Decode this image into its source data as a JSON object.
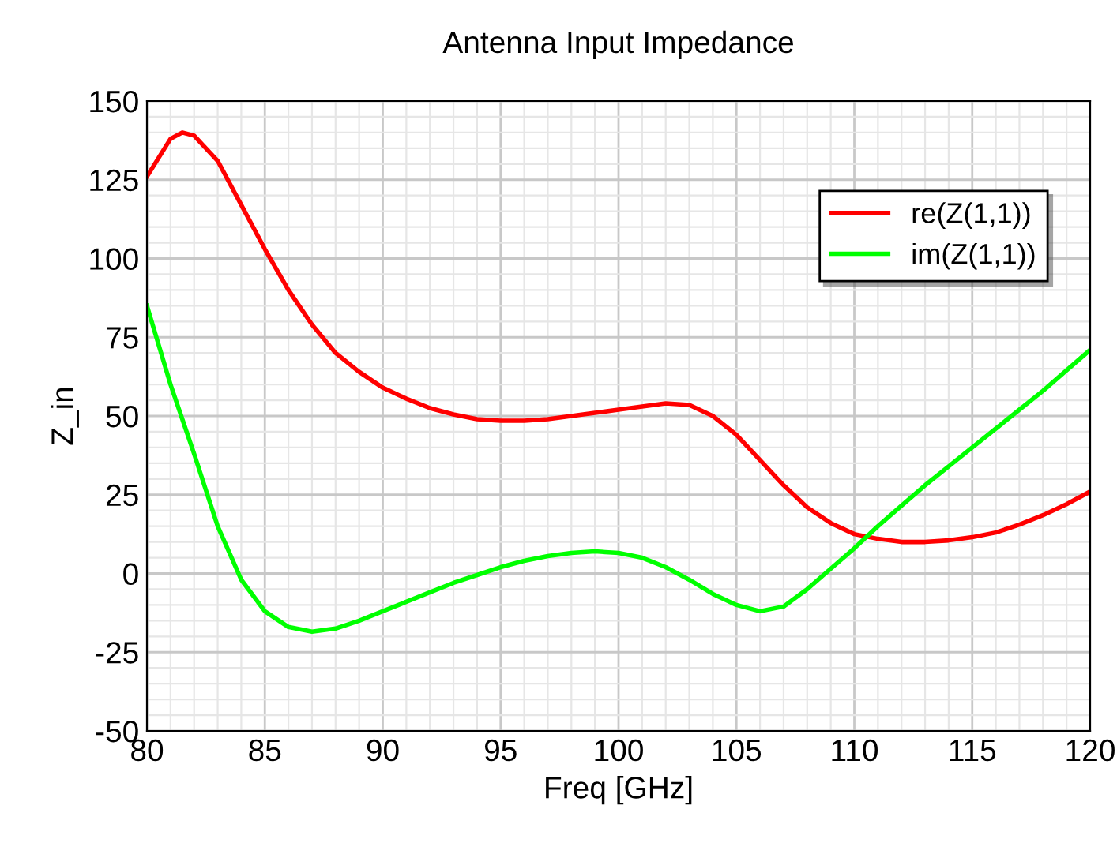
{
  "chart_data": {
    "type": "line",
    "title": "Antenna Input Impedance",
    "xlabel": "Freq [GHz]",
    "ylabel": "Z_in",
    "x": [
      80,
      81,
      81.5,
      82,
      83,
      84,
      85,
      86,
      87,
      88,
      89,
      90,
      91,
      92,
      93,
      94,
      95,
      96,
      97,
      98,
      99,
      100,
      101,
      102,
      103,
      104,
      105,
      106,
      107,
      108,
      109,
      110,
      111,
      112,
      113,
      114,
      115,
      116,
      117,
      118,
      119,
      120
    ],
    "series": [
      {
        "name": "re(Z(1,1))",
        "color": "#ff0000",
        "values": [
          126,
          138,
          140,
          139,
          131,
          117,
          103,
          90,
          79,
          70,
          64,
          59,
          55.5,
          52.5,
          50.5,
          49,
          48.5,
          48.5,
          49,
          50,
          51,
          52,
          53,
          54,
          53.5,
          50,
          44,
          36,
          28,
          21,
          16,
          12.5,
          11,
          10,
          10,
          10.5,
          11.5,
          13,
          15.5,
          18.5,
          22,
          26
        ]
      },
      {
        "name": "im(Z(1,1))",
        "color": "#00ff00",
        "values": [
          85,
          60,
          49,
          38,
          15,
          -2,
          -12,
          -17,
          -18.5,
          -17.5,
          -15,
          -12,
          -9,
          -6,
          -3,
          -0.5,
          2,
          4,
          5.5,
          6.5,
          7,
          6.5,
          5,
          2,
          -2,
          -6.5,
          -10,
          -12,
          -10.5,
          -5,
          1.5,
          8,
          15,
          21.5,
          28,
          34,
          40,
          46,
          52,
          58,
          64.5,
          71
        ]
      }
    ],
    "xlim": [
      80,
      120
    ],
    "xticks": [
      80,
      85,
      90,
      95,
      100,
      105,
      110,
      115,
      120
    ],
    "ylim": [
      -50,
      150
    ],
    "yticks": [
      -50,
      -25,
      0,
      25,
      50,
      75,
      100,
      125,
      150
    ],
    "grid": true,
    "legend": "top right"
  }
}
